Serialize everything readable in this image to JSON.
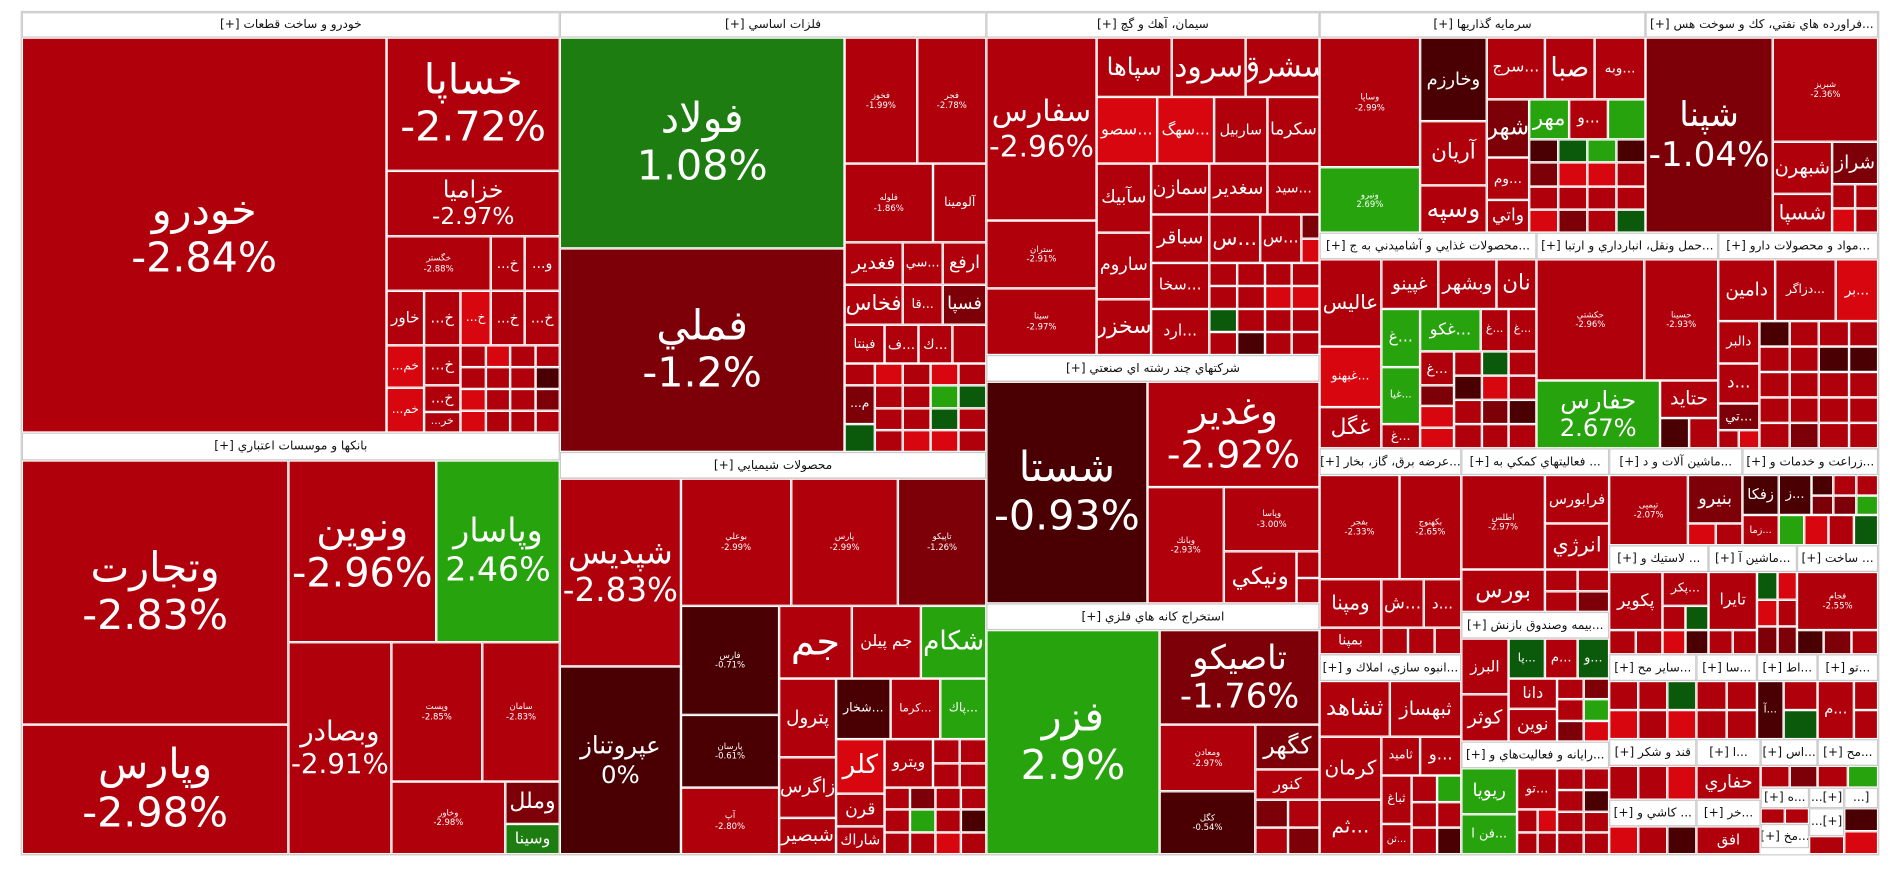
{
  "palette": {
    "r": "#b0000b",
    "b": "#d8070f",
    "d": "#7d0008",
    "x": "#4a0003",
    "g": "#27a30e",
    "G": "#1d7d10",
    "D": "#0b5a0b"
  },
  "sectors": [
    {
      "title": "خودرو و ساخت قطعات [+]",
      "tiles": [
        {
          "sym": "خودرو",
          "pct": "-2.84%",
          "c": "r"
        },
        {
          "sym": "خساپا",
          "pct": "-2.72%",
          "c": "r"
        },
        {
          "sym": "خزامیا",
          "pct": "-2.97%",
          "c": "r"
        },
        {
          "sym": "خگستر",
          "pct": "-2.88%",
          "c": "r"
        },
        {
          "sym": "خ...",
          "c": "r"
        },
        {
          "sym": "و...",
          "c": "r"
        },
        {
          "sym": "خاور",
          "c": "r"
        },
        {
          "sym": "خ...",
          "c": "r"
        },
        {
          "sym": "خ...",
          "c": "b"
        },
        {
          "sym": "خ...",
          "c": "r"
        },
        {
          "sym": "خ...",
          "c": "r"
        },
        {
          "sym": "خم...",
          "c": "b"
        },
        {
          "sym": "خم...",
          "c": "b"
        },
        {
          "sym": "خ...",
          "c": "r"
        },
        {
          "sym": "خ...",
          "c": "r"
        },
        {
          "sym": "خر...",
          "c": "r"
        }
      ]
    },
    {
      "title": "بانكها و موسسات اعتباري [+]",
      "tiles": [
        {
          "sym": "وتجارت",
          "pct": "-2.83%",
          "c": "r"
        },
        {
          "sym": "وپارس",
          "pct": "-2.98%",
          "c": "r"
        },
        {
          "sym": "ونوین",
          "pct": "-2.96%",
          "c": "r"
        },
        {
          "sym": "وپاسار",
          "pct": "2.46%",
          "c": "g"
        },
        {
          "sym": "وبصادر",
          "pct": "-2.91%",
          "c": "r"
        },
        {
          "sym": "وپست",
          "pct": "-2.85%",
          "c": "r"
        },
        {
          "sym": "سامان",
          "pct": "-2.83%",
          "c": "r"
        },
        {
          "sym": "وخاور",
          "pct": "-2.98%",
          "c": "r"
        },
        {
          "sym": "وملل",
          "c": "d"
        },
        {
          "sym": "وسینا",
          "c": "G"
        }
      ]
    },
    {
      "title": "فلزات اساسي [+]",
      "tiles": [
        {
          "sym": "فولاد",
          "pct": "1.08%",
          "c": "G"
        },
        {
          "sym": "فملي",
          "pct": "-1.2%",
          "c": "d"
        },
        {
          "sym": "فخوز",
          "pct": "-1.99%",
          "c": "r"
        },
        {
          "sym": "فجر",
          "pct": "-2.78%",
          "c": "r"
        },
        {
          "sym": "فلوله",
          "pct": "-1.86%",
          "c": "r"
        },
        {
          "sym": "آلومينا",
          "c": "r"
        },
        {
          "sym": "فغدير",
          "c": "r"
        },
        {
          "sym": "...سي",
          "c": "r"
        },
        {
          "sym": "ارفع",
          "c": "r"
        },
        {
          "sym": "فخاس",
          "c": "r"
        },
        {
          "sym": "...قا",
          "c": "r"
        },
        {
          "sym": "فسپا",
          "c": "d"
        },
        {
          "sym": "فپنتا",
          "c": "r"
        },
        {
          "sym": "...ف",
          "c": "r"
        },
        {
          "sym": "...ك",
          "c": "r"
        },
        {
          "sym": "",
          "c": "r"
        },
        {
          "sym": "م...",
          "c": "d"
        }
      ]
    },
    {
      "title": "محصولات شيميايي [+]",
      "tiles": [
        {
          "sym": "شپديس",
          "pct": "-2.83%",
          "c": "r"
        },
        {
          "sym": "عپروتناز",
          "pct": "0%",
          "c": "x"
        },
        {
          "sym": "بوعلي",
          "pct": "-2.99%",
          "c": "r"
        },
        {
          "sym": "پارس",
          "pct": "-2.99%",
          "c": "r"
        },
        {
          "sym": "تاپيكو",
          "pct": "-1.26%",
          "c": "d"
        },
        {
          "sym": "فارس",
          "pct": "-0.71%",
          "c": "x"
        },
        {
          "sym": "پارسان",
          "pct": "-0.61%",
          "c": "x"
        },
        {
          "sym": "آپ",
          "pct": "-2.80%",
          "c": "r"
        },
        {
          "sym": "جم",
          "c": "r"
        },
        {
          "sym": "جم پيلن",
          "c": "r"
        },
        {
          "sym": "شكام",
          "c": "g"
        },
        {
          "sym": "پترول",
          "c": "r"
        },
        {
          "sym": "...شخار",
          "c": "x"
        },
        {
          "sym": "...كرما",
          "c": "r"
        },
        {
          "sym": "...پاك",
          "c": "g"
        },
        {
          "sym": "زاگرس",
          "c": "r"
        },
        {
          "sym": "كلر",
          "c": "b"
        },
        {
          "sym": "ويترو",
          "c": "r"
        },
        {
          "sym": "شبصير",
          "c": "r"
        },
        {
          "sym": "قرن",
          "c": "r"
        },
        {
          "sym": "شاراك",
          "c": "r"
        }
      ]
    },
    {
      "title": "سيمان، آهك و گچ [+]",
      "tiles": [
        {
          "sym": "سفارس",
          "pct": "-2.96%",
          "c": "r"
        },
        {
          "sym": "ستران",
          "pct": "-2.91%",
          "c": "r"
        },
        {
          "sym": "سيتا",
          "pct": "-2.97%",
          "c": "r"
        },
        {
          "sym": "سپاها",
          "c": "r"
        },
        {
          "sym": "سرود",
          "c": "r"
        },
        {
          "sym": "سشرق",
          "c": "r"
        },
        {
          "sym": "...سصو",
          "c": "b"
        },
        {
          "sym": "...سهگ",
          "c": "b"
        },
        {
          "sym": "ساربيل",
          "c": "r"
        },
        {
          "sym": "سكرما",
          "c": "r"
        },
        {
          "sym": "سآبيك",
          "c": "r"
        },
        {
          "sym": "سمازن",
          "c": "r"
        },
        {
          "sym": "سغدير",
          "c": "r"
        },
        {
          "sym": "...سيد",
          "c": "r"
        },
        {
          "sym": "ساروم",
          "c": "r"
        },
        {
          "sym": "سخزر",
          "c": "r"
        },
        {
          "sym": "سباقر",
          "c": "r"
        },
        {
          "sym": "...س",
          "c": "r"
        },
        {
          "sym": "...س",
          "c": "r"
        },
        {
          "sym": "...سخا",
          "c": "r"
        },
        {
          "sym": "...ارد",
          "c": "r"
        }
      ]
    },
    {
      "title": "شركتهاي چند رشته اي صنعتي [+]",
      "tiles": [
        {
          "sym": "شستا",
          "pct": "-0.93%",
          "c": "x"
        },
        {
          "sym": "وغدير",
          "pct": "-2.92%",
          "c": "r"
        },
        {
          "sym": "وبانك",
          "pct": "-2.93%",
          "c": "r"
        },
        {
          "sym": "وپاسا",
          "pct": "-3.00%",
          "c": "r"
        },
        {
          "sym": "ونيكي",
          "c": "r"
        }
      ]
    },
    {
      "title": "استخراج كانه هاي فلزي [+]",
      "tiles": [
        {
          "sym": "فزر",
          "pct": "2.9%",
          "c": "g"
        },
        {
          "sym": "تاصيكو",
          "pct": "-1.76%",
          "c": "d"
        },
        {
          "sym": "ومعادن",
          "pct": "-2.97%",
          "c": "r"
        },
        {
          "sym": "كگهر",
          "c": "d"
        },
        {
          "sym": "كنور",
          "c": "r"
        },
        {
          "sym": "كگل",
          "pct": "-0.54%",
          "c": "x"
        }
      ]
    },
    {
      "title": "سرمايه گذاريها [+]",
      "tiles": [
        {
          "sym": "وساپا",
          "pct": "-2.99%",
          "c": "r"
        },
        {
          "sym": "ونيرو",
          "pct": "2.69%",
          "c": "g"
        },
        {
          "sym": "وخارزم",
          "c": "x"
        },
        {
          "sym": "آريان",
          "c": "r"
        },
        {
          "sym": "وسپه",
          "c": "r"
        },
        {
          "sym": "...سرج",
          "c": "r"
        },
        {
          "sym": "صبا",
          "c": "r"
        },
        {
          "sym": "...وبه",
          "c": "r"
        },
        {
          "sym": "شهر",
          "c": "d"
        },
        {
          "sym": "مهر",
          "c": "g"
        },
        {
          "sym": "...و",
          "c": "r"
        },
        {
          "sym": "",
          "c": "g"
        },
        {
          "sym": "...وم",
          "c": "r"
        },
        {
          "sym": "واتي",
          "c": "r"
        }
      ]
    },
    {
      "title": "...فراورده هاي نفتي، كك و سوخت هس [+]",
      "tiles": [
        {
          "sym": "شپنا",
          "pct": "-1.04%",
          "c": "d"
        },
        {
          "sym": "شبريز",
          "pct": "-2.36%",
          "c": "r"
        },
        {
          "sym": "شبهرن",
          "c": "r"
        },
        {
          "sym": "شراز",
          "c": "d"
        },
        {
          "sym": "شسپا",
          "c": "r"
        }
      ]
    },
    {
      "title": "...محصولات غذايي و آشاميدني به ج [+]",
      "tiles": [
        {
          "sym": "عاليس",
          "c": "r"
        },
        {
          "sym": "...غبهنو",
          "c": "b"
        },
        {
          "sym": "غگل",
          "c": "r"
        },
        {
          "sym": "غپينو",
          "c": "r"
        },
        {
          "sym": "وبشهر",
          "c": "r"
        },
        {
          "sym": "نان",
          "c": "r"
        },
        {
          "sym": "...غ",
          "c": "g"
        },
        {
          "sym": "...غكو",
          "c": "g"
        },
        {
          "sym": "...غ",
          "c": "r"
        },
        {
          "sym": "...غ",
          "c": "r"
        },
        {
          "sym": "...غيا",
          "c": "g"
        },
        {
          "sym": "...غ",
          "c": "r"
        },
        {
          "sym": "...غ",
          "c": "r"
        }
      ]
    },
    {
      "title": "...حمل ونقل، انبارداري و ارتبا [+]",
      "tiles": [
        {
          "sym": "حكشتي",
          "pct": "-2.96%",
          "c": "r"
        },
        {
          "sym": "حسينا",
          "pct": "-2.93%",
          "c": "r"
        },
        {
          "sym": "حفارس",
          "pct": "2.67%",
          "c": "g"
        },
        {
          "sym": "حتايد",
          "c": "r"
        }
      ]
    },
    {
      "title": "...مواد و محصولات دارو [+]",
      "tiles": [
        {
          "sym": "دامين",
          "c": "r"
        },
        {
          "sym": "...دزاگر",
          "c": "r"
        },
        {
          "sym": "...بر",
          "c": "b"
        },
        {
          "sym": "دالبر",
          "c": "r"
        },
        {
          "sym": "...د",
          "c": "r"
        },
        {
          "sym": "...تي",
          "c": "d"
        }
      ]
    },
    {
      "title": "...عرضه برق، گاز، بخار [+]",
      "tiles": [
        {
          "sym": "بفجر",
          "pct": "-2.33%",
          "c": "r"
        },
        {
          "sym": "بكهنوج",
          "pct": "-2.65%",
          "c": "r"
        },
        {
          "sym": "ومپنا",
          "c": "r"
        },
        {
          "sym": "...ش",
          "c": "r"
        },
        {
          "sym": "...د",
          "c": "r"
        },
        {
          "sym": "بمپنا",
          "c": "r"
        }
      ]
    },
    {
      "title": "... فعاليتهاي كمكي به [+]",
      "tiles": [
        {
          "sym": "اطلس",
          "pct": "-2.97%",
          "c": "r"
        },
        {
          "sym": "فرابورس",
          "c": "r"
        },
        {
          "sym": "انرژي",
          "c": "r"
        },
        {
          "sym": "بورس",
          "c": "r"
        }
      ]
    },
    {
      "title": "...بيمه وصندوق بازنش [+]",
      "tiles": [
        {
          "sym": "البرز",
          "c": "r"
        },
        {
          "sym": "...پا",
          "c": "D"
        },
        {
          "sym": "...م",
          "c": "r"
        },
        {
          "sym": "...و",
          "c": "D"
        },
        {
          "sym": "كوثر",
          "c": "r"
        },
        {
          "sym": "دانا",
          "c": "r"
        },
        {
          "sym": "نوين",
          "c": "r"
        }
      ]
    },
    {
      "title": "...رايانه و فعاليت‌هاي و [+]",
      "tiles": [
        {
          "sym": "ريويا",
          "c": "g"
        },
        {
          "sym": "...فن ا",
          "c": "g"
        },
        {
          "sym": "...تو",
          "c": "r"
        }
      ]
    },
    {
      "title": "...انبوه سازي، املاك و [+]",
      "tiles": [
        {
          "sym": "ثشاهد",
          "c": "r"
        },
        {
          "sym": "ثبهساز",
          "c": "r"
        },
        {
          "sym": "كرمان",
          "c": "r"
        },
        {
          "sym": "...ثم",
          "c": "r"
        },
        {
          "sym": "ثاميد",
          "c": "r"
        },
        {
          "sym": "...و",
          "c": "r"
        },
        {
          "sym": "ثباغ",
          "c": "r"
        },
        {
          "sym": "...ثن",
          "c": "r"
        }
      ]
    },
    {
      "title": "...ماشين آلات و د [+]",
      "tiles": [
        {
          "sym": "تپمپی",
          "pct": "-2.07%",
          "c": "r"
        },
        {
          "sym": "بنيرو",
          "c": "d"
        }
      ]
    },
    {
      "title": "...زراعت و خدمات و [+]",
      "tiles": [
        {
          "sym": "زفكا",
          "c": "x"
        },
        {
          "sym": "...ز",
          "c": "x"
        },
        {
          "sym": "...زما",
          "c": "r"
        }
      ]
    },
    {
      "title": "... لاستيك و [+]",
      "tiles": [
        {
          "sym": "پكوير",
          "c": "r"
        },
        {
          "sym": "...پكر",
          "c": "r"
        }
      ]
    },
    {
      "title": "...ماشين آ [+]",
      "tiles": [
        {
          "sym": "تايرا",
          "c": "r"
        }
      ]
    },
    {
      "title": "... ساخت [+]",
      "tiles": [
        {
          "sym": "فجام",
          "pct": "-2.55%",
          "c": "r"
        }
      ]
    },
    {
      "title": "...ساير مح [+]",
      "tiles": []
    },
    {
      "title": "...سا [+]",
      "tiles": []
    },
    {
      "title": "...اط [+]",
      "tiles": [
        {
          "sym": "...آ",
          "c": "x"
        }
      ]
    },
    {
      "title": "...تو [+]",
      "tiles": [
        {
          "sym": "...م",
          "c": "r"
        }
      ]
    },
    {
      "title": "قند و شكر [+]",
      "tiles": []
    },
    {
      "title": "...ا [+]",
      "tiles": [
        {
          "sym": "حفاري",
          "c": "r"
        }
      ]
    },
    {
      "title": "...اس [+]",
      "tiles": []
    },
    {
      "title": "...مح [+]",
      "tiles": []
    },
    {
      "title": "... كاشي و [+]",
      "tiles": []
    },
    {
      "title": "...خر [+]",
      "tiles": [
        {
          "sym": "افق",
          "c": "r"
        }
      ]
    },
    {
      "title": "...ه [+]",
      "tiles": []
    },
    {
      "title": "[+]...",
      "tiles": []
    },
    {
      "title": "[...",
      "tiles": []
    },
    {
      "title": "...مخ [+]",
      "tiles": []
    },
    {
      "title": "[+]...",
      "tiles": []
    }
  ]
}
